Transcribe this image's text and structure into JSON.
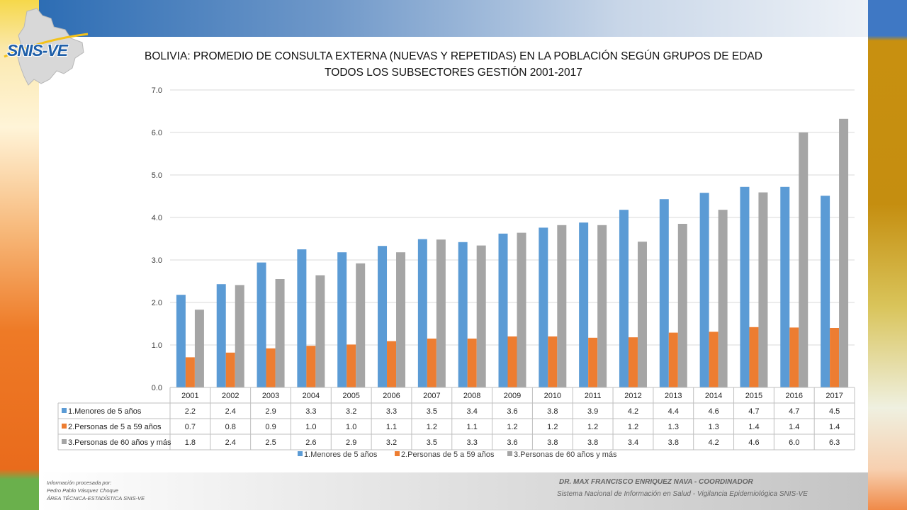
{
  "header": {
    "logo_text": "SNIS-VE"
  },
  "chart_title": {
    "line1": "BOLIVIA: PROMEDIO DE CONSULTA EXTERNA (NUEVAS Y REPETIDAS) EN LA POBLACIÓN SEGÚN GRUPOS DE EDAD",
    "line2": "TODOS LOS SUBSECTORES GESTIÓN 2001-2017"
  },
  "footer": {
    "left_line1": "Información procesada por:",
    "left_line2": "Pedro Pablo Vásquez Choque",
    "left_line3": "ÁREA TÉCNICA-ESTADÍSTICA  SNIS-VE",
    "right_line1": "DR. MAX FRANCISCO ENRIQUEZ NAVA - COORDINADOR",
    "right_line2": "Sistema Nacional de Información en Salud - Vigilancia Epidemiológica SNIS-VE"
  },
  "chart_data": {
    "type": "bar",
    "categories": [
      "2001",
      "2002",
      "2003",
      "2004",
      "2005",
      "2006",
      "2007",
      "2008",
      "2009",
      "2010",
      "2011",
      "2012",
      "2013",
      "2014",
      "2015",
      "2016",
      "2017"
    ],
    "ylim": [
      0,
      7
    ],
    "yticks": [
      "0.0",
      "1.0",
      "2.0",
      "3.0",
      "4.0",
      "5.0",
      "6.0",
      "7.0"
    ],
    "grid": true,
    "legend_position": "bottom",
    "data_table": true,
    "series": [
      {
        "name": "1.Menores de 5 años",
        "color": "#5b9bd5",
        "values": [
          2.18,
          2.43,
          2.94,
          3.25,
          3.18,
          3.33,
          3.49,
          3.42,
          3.62,
          3.76,
          3.88,
          4.18,
          4.43,
          4.58,
          4.72,
          4.72,
          4.51
        ],
        "labels": [
          "2.2",
          "2.4",
          "2.9",
          "3.3",
          "3.2",
          "3.3",
          "3.5",
          "3.4",
          "3.6",
          "3.8",
          "3.9",
          "4.2",
          "4.4",
          "4.6",
          "4.7",
          "4.7",
          "4.5"
        ]
      },
      {
        "name": "2.Personas de 5 a 59 años",
        "color": "#ed7d31",
        "values": [
          0.71,
          0.82,
          0.92,
          0.98,
          1.01,
          1.09,
          1.15,
          1.15,
          1.2,
          1.2,
          1.17,
          1.18,
          1.29,
          1.31,
          1.42,
          1.41,
          1.4
        ],
        "labels": [
          "0.7",
          "0.8",
          "0.9",
          "1.0",
          "1.0",
          "1.1",
          "1.2",
          "1.1",
          "1.2",
          "1.2",
          "1.2",
          "1.2",
          "1.3",
          "1.3",
          "1.4",
          "1.4",
          "1.4"
        ]
      },
      {
        "name": "3.Personas de 60 años y más",
        "color": "#a5a5a5",
        "values": [
          1.83,
          2.41,
          2.55,
          2.64,
          2.92,
          3.18,
          3.48,
          3.34,
          3.64,
          3.82,
          3.82,
          3.43,
          3.85,
          4.18,
          4.59,
          6.0,
          6.32
        ],
        "labels": [
          "1.8",
          "2.4",
          "2.5",
          "2.6",
          "2.9",
          "3.2",
          "3.5",
          "3.3",
          "3.6",
          "3.8",
          "3.8",
          "3.4",
          "3.8",
          "4.2",
          "4.6",
          "6.0",
          "6.3"
        ]
      }
    ]
  }
}
